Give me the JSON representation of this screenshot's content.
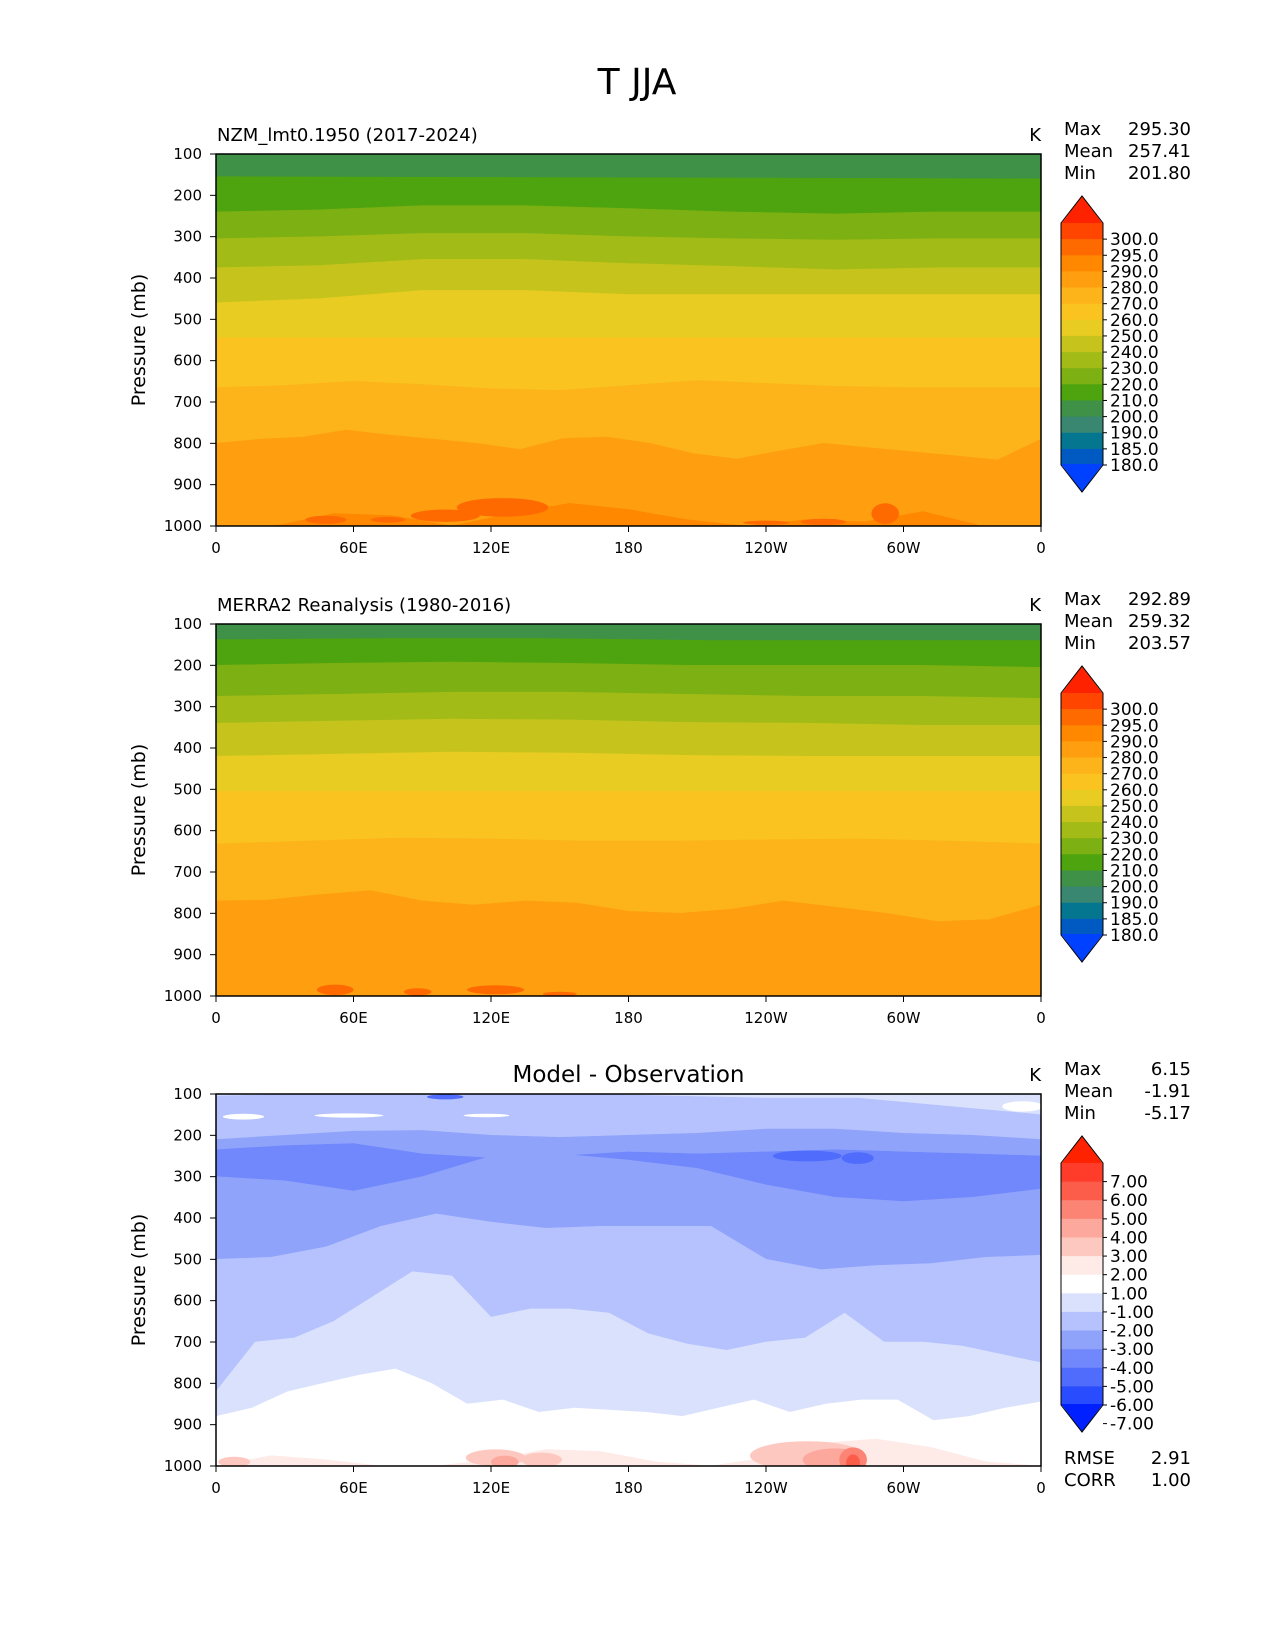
{
  "figure": {
    "title": "T JJA"
  },
  "chart_data": [
    {
      "type": "contour",
      "panel": "model",
      "title": "NZM_lmt0.1950 (2017-2024)",
      "title_align": "left",
      "units": "K",
      "ylabel": "Pressure (mb)",
      "xlabel": "",
      "x_ticks": [
        "0",
        "60E",
        "120E",
        "180",
        "120W",
        "60W",
        "0"
      ],
      "y_ticks": [
        "100",
        "200",
        "300",
        "400",
        "500",
        "600",
        "700",
        "800",
        "900",
        "1000"
      ],
      "ylim": [
        1000,
        100
      ],
      "xlim": [
        0,
        360
      ],
      "stats": [
        {
          "label": "Max",
          "value": "295.30"
        },
        {
          "label": "Mean",
          "value": "257.41"
        },
        {
          "label": "Min",
          "value": "201.80"
        }
      ],
      "colorbar": {
        "labels": [
          "300.0",
          "295.0",
          "290.0",
          "280.0",
          "270.0",
          "260.0",
          "250.0",
          "240.0",
          "230.0",
          "220.0",
          "210.0",
          "200.0",
          "190.0",
          "185.0",
          "180.0"
        ],
        "colors": [
          "#ff2200",
          "#ff4500",
          "#ff6a00",
          "#ff8800",
          "#ff9f10",
          "#fcb41a",
          "#fac31f",
          "#e8cc22",
          "#c6c41c",
          "#a2bb17",
          "#7cb013",
          "#4ea40f",
          "#3e9146",
          "#3a8771",
          "#04768f",
          "#005ac2",
          "#0040ff"
        ]
      },
      "bands": [
        {
          "color": "#3e9146",
          "p_top": [
            100,
            100
          ],
          "p_bot": [
            100,
            100
          ]
        },
        {
          "color": "#4ea40f",
          "p_top": [
            155,
            160
          ],
          "p_bot": [
            155,
            160
          ]
        },
        {
          "color": "#7cb013",
          "p_top": [
            240,
            235,
            225,
            225,
            232,
            240,
            245,
            240,
            240
          ],
          "p_bot": [
            0
          ]
        },
        {
          "color": "#a2bb17",
          "p_top": [
            305,
            300,
            292,
            292,
            300,
            305,
            308,
            305,
            305
          ],
          "p_bot": [
            0
          ]
        },
        {
          "color": "#c6c41c",
          "p_top": [
            375,
            370,
            355,
            355,
            365,
            372,
            380,
            375,
            375
          ],
          "p_bot": [
            0
          ]
        },
        {
          "color": "#e8cc22",
          "p_top": [
            460,
            450,
            430,
            430,
            440,
            440,
            440,
            440,
            440
          ],
          "p_bot": [
            0
          ]
        },
        {
          "color": "#fac31f",
          "p_top": [
            545,
            545,
            545,
            545,
            545,
            545,
            545,
            545,
            545
          ],
          "p_bot": [
            0
          ]
        },
        {
          "color": "#fcb41a",
          "p_top": [
            665,
            660,
            650,
            658,
            668,
            672,
            660,
            648,
            655,
            662,
            665,
            665,
            665
          ],
          "p_bot": [
            0
          ]
        },
        {
          "color": "#ff9f10",
          "p_top": [
            800,
            790,
            785,
            768,
            780,
            790,
            800,
            815,
            788,
            785,
            800,
            825,
            838,
            818,
            800,
            810,
            820,
            830,
            840,
            790
          ],
          "p_bot": [
            0
          ]
        },
        {
          "color": "#ff8800",
          "p_top": [
            1000,
            1000,
            970,
            975,
            1000,
            970,
            945,
            960,
            985,
            1000,
            985,
            990,
            965,
            1000,
            1000
          ],
          "p_bot": [
            0
          ]
        }
      ],
      "blobs": [
        {
          "color": "#ff6a00",
          "lon": 48,
          "p": 985,
          "w": 18,
          "h": 20
        },
        {
          "color": "#ff6a00",
          "lon": 75,
          "p": 985,
          "w": 15,
          "h": 14
        },
        {
          "color": "#ff6a00",
          "lon": 100,
          "p": 975,
          "w": 30,
          "h": 30
        },
        {
          "color": "#ff6a00",
          "lon": 125,
          "p": 955,
          "w": 40,
          "h": 45
        },
        {
          "color": "#ff6a00",
          "lon": 240,
          "p": 992,
          "w": 20,
          "h": 10
        },
        {
          "color": "#ff6a00",
          "lon": 265,
          "p": 990,
          "w": 20,
          "h": 15
        },
        {
          "color": "#ff6a00",
          "lon": 292,
          "p": 970,
          "w": 12,
          "h": 50
        }
      ]
    },
    {
      "type": "contour",
      "panel": "observation",
      "title": "MERRA2 Reanalysis (1980-2016)",
      "title_align": "left",
      "units": "K",
      "ylabel": "Pressure (mb)",
      "xlabel": "",
      "x_ticks": [
        "0",
        "60E",
        "120E",
        "180",
        "120W",
        "60W",
        "0"
      ],
      "y_ticks": [
        "100",
        "200",
        "300",
        "400",
        "500",
        "600",
        "700",
        "800",
        "900",
        "1000"
      ],
      "ylim": [
        1000,
        100
      ],
      "xlim": [
        0,
        360
      ],
      "stats": [
        {
          "label": "Max",
          "value": "292.89"
        },
        {
          "label": "Mean",
          "value": "259.32"
        },
        {
          "label": "Min",
          "value": "203.57"
        }
      ],
      "colorbar": {
        "labels": [
          "300.0",
          "295.0",
          "290.0",
          "280.0",
          "270.0",
          "260.0",
          "250.0",
          "240.0",
          "230.0",
          "220.0",
          "210.0",
          "200.0",
          "190.0",
          "185.0",
          "180.0"
        ],
        "colors": [
          "#ff2200",
          "#ff4500",
          "#ff6a00",
          "#ff8800",
          "#ff9f10",
          "#fcb41a",
          "#fac31f",
          "#e8cc22",
          "#c6c41c",
          "#a2bb17",
          "#7cb013",
          "#4ea40f",
          "#3e9146",
          "#3a8771",
          "#04768f",
          "#005ac2",
          "#0040ff"
        ]
      },
      "bands": [
        {
          "color": "#3e9146",
          "p_top": [
            100,
            100
          ],
          "p_bot": [
            0
          ]
        },
        {
          "color": "#4ea40f",
          "p_top": [
            138,
            135,
            135,
            140,
            140,
            140
          ],
          "p_bot": [
            0
          ]
        },
        {
          "color": "#7cb013",
          "p_top": [
            200,
            195,
            192,
            195,
            200,
            200,
            200,
            205
          ],
          "p_bot": [
            0
          ]
        },
        {
          "color": "#a2bb17",
          "p_top": [
            275,
            270,
            265,
            265,
            270,
            275,
            275,
            280
          ],
          "p_bot": [
            0
          ]
        },
        {
          "color": "#c6c41c",
          "p_top": [
            340,
            335,
            330,
            332,
            338,
            340,
            345,
            345
          ],
          "p_bot": [
            0
          ]
        },
        {
          "color": "#e8cc22",
          "p_top": [
            420,
            415,
            410,
            412,
            418,
            420,
            420,
            420
          ],
          "p_bot": [
            0
          ]
        },
        {
          "color": "#fac31f",
          "p_top": [
            505,
            505,
            505,
            505,
            505,
            505,
            505,
            505
          ],
          "p_bot": [
            0
          ]
        },
        {
          "color": "#fcb41a",
          "p_top": [
            632,
            625,
            618,
            620,
            625,
            625,
            622,
            620,
            625,
            632
          ],
          "p_bot": [
            0
          ]
        },
        {
          "color": "#ff9f10",
          "p_top": [
            770,
            768,
            755,
            745,
            770,
            780,
            770,
            775,
            795,
            800,
            790,
            770,
            785,
            800,
            820,
            815,
            780
          ],
          "p_bot": [
            0
          ]
        },
        {
          "color": "#ff8800",
          "p_top": [
            1000,
            1000
          ],
          "p_bot": [
            0
          ]
        }
      ],
      "blobs": [
        {
          "color": "#ff6a00",
          "lon": 52,
          "p": 985,
          "w": 16,
          "h": 25
        },
        {
          "color": "#ff6a00",
          "lon": 88,
          "p": 990,
          "w": 12,
          "h": 18
        },
        {
          "color": "#ff6a00",
          "lon": 122,
          "p": 985,
          "w": 25,
          "h": 22
        },
        {
          "color": "#ff6a00",
          "lon": 150,
          "p": 995,
          "w": 15,
          "h": 10
        }
      ]
    },
    {
      "type": "contour",
      "panel": "difference",
      "title": "Model - Observation",
      "title_align": "center",
      "units": "K",
      "ylabel": "Pressure (mb)",
      "xlabel": "",
      "x_ticks": [
        "0",
        "60E",
        "120E",
        "180",
        "120W",
        "60W",
        "0"
      ],
      "y_ticks": [
        "100",
        "200",
        "300",
        "400",
        "500",
        "600",
        "700",
        "800",
        "900",
        "1000"
      ],
      "ylim": [
        1000,
        100
      ],
      "xlim": [
        0,
        360
      ],
      "stats": [
        {
          "label": "Max",
          "value": "6.15"
        },
        {
          "label": "Mean",
          "value": "-1.91"
        },
        {
          "label": "Min",
          "value": "-5.17"
        }
      ],
      "extra_stats": [
        {
          "label": "RMSE",
          "value": "2.91"
        },
        {
          "label": "CORR",
          "value": "1.00"
        }
      ],
      "colorbar": {
        "labels": [
          "7.00",
          "6.00",
          "5.00",
          "4.00",
          "3.00",
          "2.00",
          "1.00",
          "-1.00",
          "-2.00",
          "-3.00",
          "-4.00",
          "-5.00",
          "-6.00",
          "-7.00"
        ],
        "colors": [
          "#ff2200",
          "#ff3b2a",
          "#fb5d4a",
          "#fc8474",
          "#fda89c",
          "#fdc8c0",
          "#feeae6",
          "#ffffff",
          "#dae1fd",
          "#b5c2fd",
          "#90a3fb",
          "#7088fb",
          "#4f6cfd",
          "#2a4cff",
          "#0020ff"
        ]
      },
      "bands": [
        {
          "color": "#dae1fd",
          "p_top": [
            100,
            100
          ],
          "p_bot": [
            0
          ]
        },
        {
          "color": "#b5c2fd",
          "p_top": [
            105,
            100,
            100,
            100,
            100,
            105,
            110,
            110,
            130,
            150
          ],
          "p_bot": [
            0
          ]
        },
        {
          "color": "#90a3fb",
          "p_top": [
            210,
            200,
            190,
            188,
            200,
            205,
            200,
            195,
            185,
            185,
            195,
            200,
            210
          ],
          "p_bot": [
            0
          ]
        },
        {
          "color": "#7088fb",
          "p_top": [
            235,
            225,
            220,
            245,
            255,
            250,
            240,
            245,
            240,
            235,
            240,
            245,
            250
          ],
          "p_bot": [
            0
          ]
        },
        {
          "color": "#90a3fb",
          "p_top": [
            300,
            310,
            335,
            300,
            250,
            245,
            260,
            280,
            320,
            350,
            360,
            350,
            330
          ],
          "p_bot": [
            0
          ]
        },
        {
          "color": "#b5c2fd",
          "p_top": [
            500,
            495,
            470,
            420,
            390,
            410,
            425,
            420,
            420,
            420,
            500,
            525,
            515,
            510,
            495,
            490
          ],
          "p_bot": [
            0
          ]
        },
        {
          "color": "#dae1fd",
          "p_top": [
            820,
            700,
            690,
            650,
            590,
            530,
            540,
            640,
            620,
            620,
            630,
            680,
            705,
            720,
            700,
            690,
            630,
            700,
            700,
            710,
            730,
            750
          ],
          "p_bot": [
            0
          ]
        },
        {
          "color": "#ffffff",
          "p_top": [
            880,
            860,
            820,
            800,
            780,
            765,
            800,
            850,
            840,
            870,
            860,
            865,
            870,
            880,
            860,
            840,
            870,
            850,
            840,
            840,
            890,
            880,
            860,
            845
          ],
          "p_bot": [
            0
          ]
        },
        {
          "color": "#feeae6",
          "p_top": [
            1000,
            975,
            985,
            1000,
            1000,
            985,
            960,
            965,
            990,
            1000,
            980,
            945,
            935,
            955,
            990,
            1000
          ],
          "p_bot": [
            0
          ]
        }
      ],
      "blobs": [
        {
          "color": "#ffffff",
          "lon": 12,
          "p": 155,
          "w": 18,
          "h": 14
        },
        {
          "color": "#ffffff",
          "lon": 58,
          "p": 152,
          "w": 30,
          "h": 10
        },
        {
          "color": "#ffffff",
          "lon": 118,
          "p": 152,
          "w": 20,
          "h": 8
        },
        {
          "color": "#ffffff",
          "lon": 352,
          "p": 130,
          "w": 18,
          "h": 25
        },
        {
          "color": "#4f6cfd",
          "lon": 258,
          "p": 250,
          "w": 30,
          "h": 26
        },
        {
          "color": "#4f6cfd",
          "lon": 280,
          "p": 255,
          "w": 14,
          "h": 28
        },
        {
          "color": "#4f6cfd",
          "lon": 100,
          "p": 107,
          "w": 16,
          "h": 12
        },
        {
          "color": "#fdc8c0",
          "lon": 122,
          "p": 980,
          "w": 26,
          "h": 40
        },
        {
          "color": "#fdc8c0",
          "lon": 142,
          "p": 985,
          "w": 18,
          "h": 35
        },
        {
          "color": "#fda89c",
          "lon": 126,
          "p": 990,
          "w": 12,
          "h": 30
        },
        {
          "color": "#fdc8c0",
          "lon": 258,
          "p": 975,
          "w": 50,
          "h": 70
        },
        {
          "color": "#fda89c",
          "lon": 270,
          "p": 985,
          "w": 28,
          "h": 55
        },
        {
          "color": "#fc8474",
          "lon": 278,
          "p": 985,
          "w": 12,
          "h": 60
        },
        {
          "color": "#fb5d4a",
          "lon": 278,
          "p": 992,
          "w": 6,
          "h": 40
        },
        {
          "color": "#fdc8c0",
          "lon": 8,
          "p": 990,
          "w": 14,
          "h": 25
        }
      ]
    }
  ]
}
